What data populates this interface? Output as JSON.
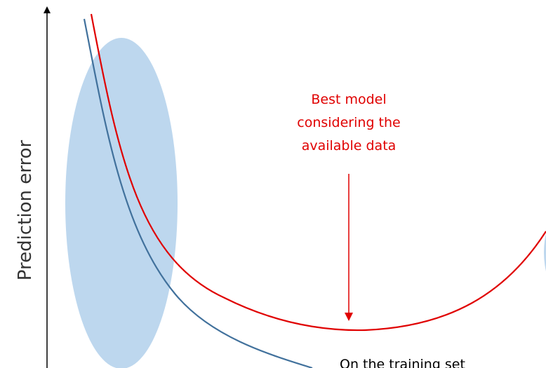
{
  "y_axis": {
    "label": "Prediction error"
  },
  "annotation": {
    "lines": [
      "Best model",
      "considering the",
      "available data"
    ]
  },
  "curves": {
    "training_label": "On the training set"
  }
}
